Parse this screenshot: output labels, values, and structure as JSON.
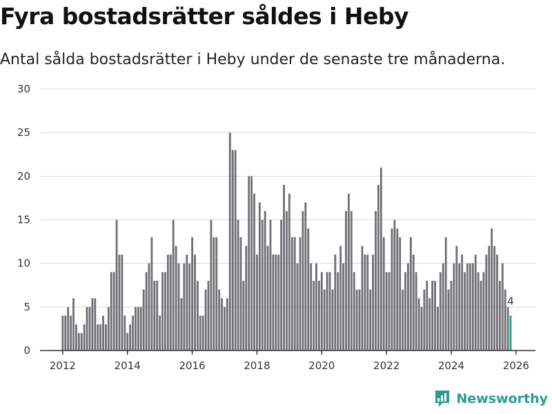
{
  "title": "Fyra bostadsrätter såldes i Heby",
  "subtitle": "Antal sålda bostadsrätter i Heby under de senaste tre månaderna.",
  "brand": {
    "name": "Newsworthy",
    "color": "#2a9d8f"
  },
  "chart_data": {
    "type": "bar",
    "x_start": "2012-01",
    "x_end": "2026-01",
    "xlim": [
      2011.3,
      2026.6
    ],
    "ylim": [
      0,
      30
    ],
    "y_ticks": [
      0,
      5,
      10,
      15,
      20,
      25,
      30
    ],
    "x_ticks": [
      2012,
      2014,
      2016,
      2018,
      2020,
      2022,
      2024,
      2026
    ],
    "bar_color": "#6e6e73",
    "highlight_color": "#2a9d8f",
    "highlight_label": "4",
    "values": [
      4,
      4,
      5,
      4,
      6,
      3,
      2,
      2,
      3,
      5,
      5,
      6,
      6,
      3,
      3,
      4,
      3,
      5,
      9,
      9,
      15,
      11,
      11,
      4,
      2,
      3,
      4,
      5,
      5,
      5,
      7,
      9,
      10,
      13,
      8,
      8,
      4,
      9,
      9,
      11,
      11,
      15,
      12,
      10,
      6,
      10,
      11,
      10,
      13,
      11,
      8,
      4,
      4,
      7,
      8,
      15,
      13,
      13,
      7,
      6,
      5,
      6,
      25,
      23,
      23,
      15,
      13,
      8,
      12,
      20,
      20,
      18,
      11,
      17,
      15,
      16,
      12,
      15,
      11,
      11,
      11,
      15,
      19,
      16,
      18,
      13,
      13,
      10,
      13,
      16,
      17,
      14,
      10,
      8,
      10,
      8,
      9,
      7,
      9,
      9,
      7,
      11,
      9,
      12,
      10,
      16,
      18,
      16,
      9,
      7,
      7,
      12,
      11,
      11,
      7,
      11,
      16,
      19,
      21,
      13,
      9,
      9,
      14,
      15,
      14,
      13,
      7,
      9,
      10,
      13,
      11,
      9,
      6,
      5,
      7,
      8,
      6,
      8,
      8,
      5,
      9,
      10,
      13,
      7,
      8,
      10,
      12,
      10,
      11,
      9,
      10,
      10,
      10,
      11,
      9,
      8,
      9,
      11,
      12,
      14,
      12,
      11,
      8,
      10,
      7,
      5,
      4
    ]
  }
}
